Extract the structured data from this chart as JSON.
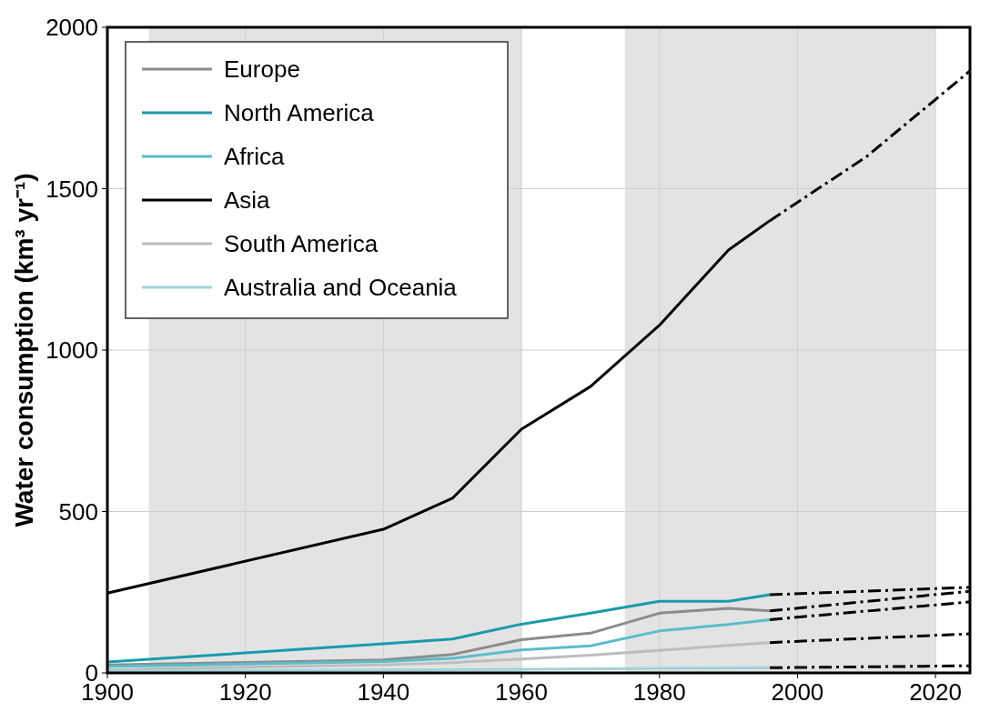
{
  "chart_data": {
    "type": "line",
    "ylabel": "Water consumption (km³ yr⁻¹)",
    "xlim": [
      1900,
      2025
    ],
    "xticks": [
      1900,
      1920,
      1940,
      1960,
      1980,
      2000,
      2020
    ],
    "ylim": [
      0,
      2000
    ],
    "yticks": [
      0,
      500,
      1000,
      1500,
      2000
    ],
    "grid": true,
    "legend": "top left",
    "bands": [
      {
        "axis": "x",
        "from": 1906,
        "to": 1960,
        "color": "#e3e3e3"
      },
      {
        "axis": "x",
        "from": 1975,
        "to": 2020,
        "color": "#e3e3e3"
      }
    ],
    "series": [
      {
        "name": "Europe",
        "color": "#8c8c8c",
        "x": [
          1900,
          1940,
          1950,
          1960,
          1970,
          1980,
          1990,
          1996
        ],
        "values": [
          25,
          40,
          57,
          103,
          123,
          185,
          200,
          192
        ]
      },
      {
        "name": "North America",
        "color": "#1a9aaa",
        "x": [
          1900,
          1940,
          1950,
          1960,
          1970,
          1980,
          1990,
          1996
        ],
        "values": [
          34,
          90,
          105,
          151,
          185,
          222,
          222,
          242
        ]
      },
      {
        "name": "Africa",
        "color": "#5bbccc",
        "x": [
          1900,
          1940,
          1950,
          1960,
          1970,
          1980,
          1990,
          1996
        ],
        "values": [
          20,
          35,
          45,
          71,
          84,
          130,
          150,
          165
        ]
      },
      {
        "name": "Asia",
        "color": "#000000",
        "x": [
          1900,
          1940,
          1950,
          1960,
          1970,
          1980,
          1990,
          1996
        ],
        "values": [
          247,
          445,
          541,
          755,
          887,
          1077,
          1310,
          1401
        ]
      },
      {
        "name": "South America",
        "color": "#bdbdbd",
        "x": [
          1900,
          1940,
          1950,
          1960,
          1970,
          1980,
          1990,
          1996
        ],
        "values": [
          10,
          25,
          32,
          43,
          55,
          70,
          85,
          94
        ]
      },
      {
        "name": "Australia and Oceania",
        "color": "#9fd3dd",
        "x": [
          1900,
          1950,
          1996
        ],
        "values": [
          5,
          10,
          16
        ]
      },
      {
        "color": "#000000",
        "line_style": "dashed",
        "x": [
          1996,
          2025
        ],
        "values": [
          242,
          265
        ]
      },
      {
        "color": "#000000",
        "line_style": "dashed",
        "x": [
          1996,
          2025
        ],
        "values": [
          192,
          253
        ]
      },
      {
        "color": "#000000",
        "line_style": "dashed",
        "x": [
          1996,
          2025
        ],
        "values": [
          165,
          220
        ]
      },
      {
        "color": "#000000",
        "line_style": "dashed",
        "x": [
          1996,
          2010,
          2025
        ],
        "values": [
          1401,
          1599,
          1865
        ]
      },
      {
        "color": "#000000",
        "line_style": "dashed",
        "x": [
          1996,
          2025
        ],
        "values": [
          94,
          121
        ]
      },
      {
        "color": "#000000",
        "line_style": "dashed",
        "x": [
          1996,
          2025
        ],
        "values": [
          16,
          22
        ]
      }
    ]
  }
}
